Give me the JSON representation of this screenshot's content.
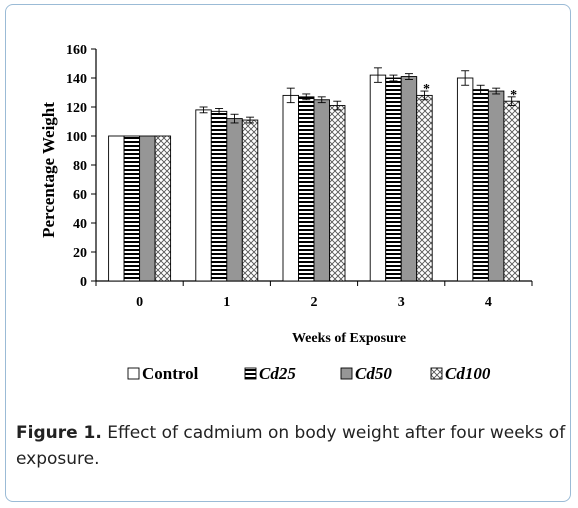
{
  "chart_data": {
    "type": "bar",
    "title": "",
    "xlabel": "Weeks of Exposure",
    "ylabel": "Percentage Weight",
    "ylim": [
      0,
      160
    ],
    "yticks": [
      0,
      20,
      40,
      60,
      80,
      100,
      120,
      140,
      160
    ],
    "categories": [
      "0",
      "1",
      "2",
      "3",
      "4"
    ],
    "series": [
      {
        "name": "Control",
        "values": [
          100,
          118,
          128,
          142,
          140
        ],
        "errors": [
          0,
          2,
          5,
          5,
          5
        ],
        "pattern": "plain",
        "color": "#ffffff"
      },
      {
        "name": "Cd25",
        "values": [
          100,
          117,
          127,
          140,
          132
        ],
        "errors": [
          0,
          2,
          2,
          2,
          3
        ],
        "pattern": "horizontal-lines",
        "color": "#000000"
      },
      {
        "name": "Cd50",
        "values": [
          100,
          112,
          125,
          141,
          131
        ],
        "errors": [
          0,
          3,
          2,
          2,
          2
        ],
        "pattern": "solid",
        "color": "#969696"
      },
      {
        "name": "Cd100",
        "values": [
          100,
          111,
          121,
          128,
          124
        ],
        "errors": [
          0,
          2,
          3,
          3,
          3
        ],
        "pattern": "crosshatch",
        "color": "#555555"
      }
    ],
    "annotations": [
      {
        "category": "3",
        "series": "Cd100",
        "text": "*"
      },
      {
        "category": "4",
        "series": "Cd100",
        "text": "*"
      }
    ],
    "grid": false,
    "legend": "bottom"
  },
  "caption": {
    "label": "Figure 1.",
    "text": " Effect of cadmium on body weight after four weeks of exposure."
  }
}
